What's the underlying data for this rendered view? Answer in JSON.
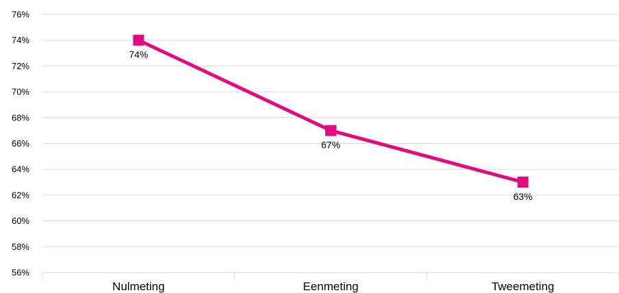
{
  "chart_data": {
    "type": "line",
    "categories": [
      "Nulmeting",
      "Eenmeting",
      "Tweemeting"
    ],
    "series": [
      {
        "values": [
          74,
          67,
          63
        ],
        "color": "#e5097f",
        "marker": "square"
      }
    ],
    "data_labels": [
      "74%",
      "67%",
      "63%"
    ],
    "ylim": [
      56,
      76
    ],
    "yticks": [
      56,
      58,
      60,
      62,
      64,
      66,
      68,
      70,
      72,
      74,
      76
    ],
    "ytick_labels": [
      "56%",
      "58%",
      "60%",
      "62%",
      "64%",
      "66%",
      "68%",
      "70%",
      "72%",
      "74%",
      "76%"
    ],
    "grid": true,
    "legend": "none"
  }
}
